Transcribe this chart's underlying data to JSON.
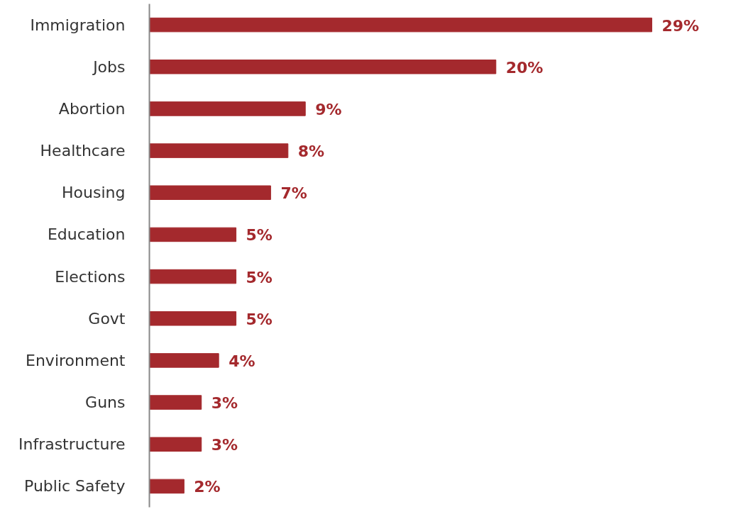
{
  "chart_data": {
    "type": "bar",
    "orientation": "horizontal",
    "categories": [
      "Immigration",
      "Jobs",
      "Abortion",
      "Healthcare",
      "Housing",
      "Education",
      "Elections",
      "Govt",
      "Environment",
      "Guns",
      "Infrastructure",
      "Public Safety"
    ],
    "values": [
      29,
      20,
      9,
      8,
      7,
      5,
      5,
      5,
      4,
      3,
      3,
      2
    ],
    "value_labels": [
      "29%",
      "20%",
      "9%",
      "8%",
      "7%",
      "5%",
      "5%",
      "5%",
      "4%",
      "3%",
      "3%",
      "2%"
    ],
    "color": "#a4292d",
    "tick_labels": "y",
    "grid": false
  }
}
